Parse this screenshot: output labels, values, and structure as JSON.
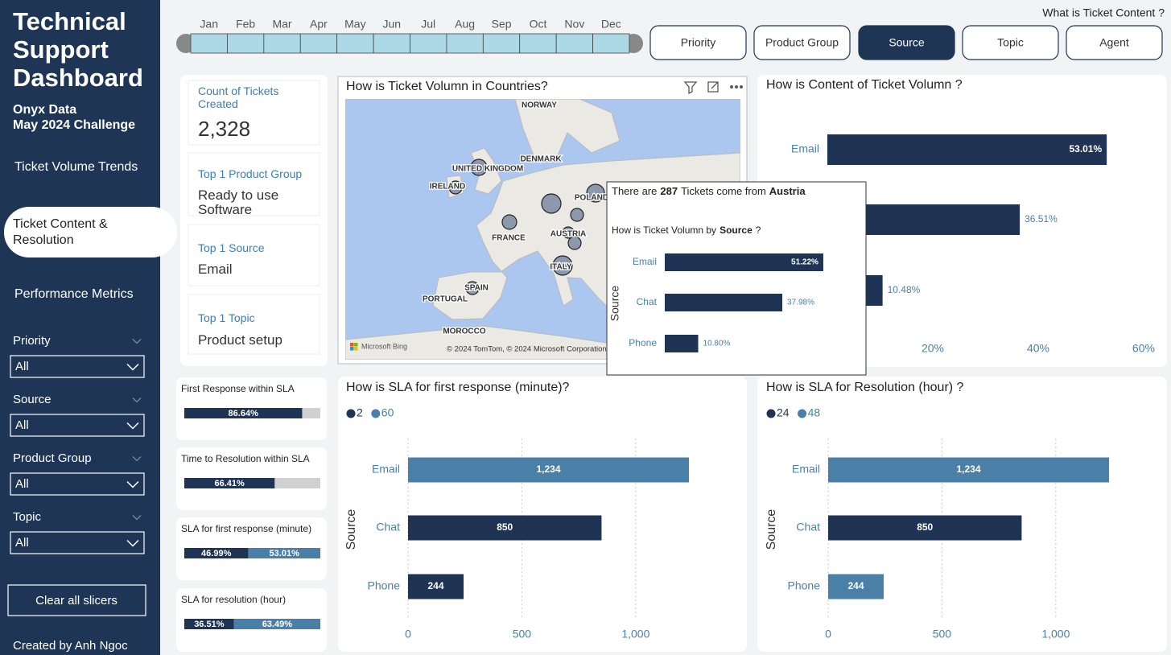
{
  "sidebar": {
    "title": "Technical Support Dashboard",
    "org": "Onyx Data",
    "challenge": "May 2024 Challenge",
    "nav": [
      "Ticket Volume Trends",
      "Ticket Content & Resolution",
      "Performance Metrics"
    ],
    "active_nav": 1,
    "slicers": [
      {
        "label": "Priority",
        "value": "All"
      },
      {
        "label": "Source",
        "value": "All"
      },
      {
        "label": "Product Group",
        "value": "All"
      },
      {
        "label": "Topic",
        "value": "All"
      }
    ],
    "clear_button": "Clear all slicers",
    "credit": "Created by Anh Ngoc"
  },
  "timeline": {
    "months": [
      "Jan",
      "Feb",
      "Mar",
      "Apr",
      "May",
      "Jun",
      "Jul",
      "Aug",
      "Sep",
      "Oct",
      "Nov",
      "Dec"
    ]
  },
  "question": "What is Ticket Content ?",
  "tabs": {
    "items": [
      "Priority",
      "Product Group",
      "Source",
      "Topic",
      "Agent"
    ],
    "active": 2
  },
  "kpis": [
    {
      "label": "Count of Tickets Created",
      "value": "2,328"
    },
    {
      "label": "Top 1 Product Group",
      "value": "Ready to use Software"
    },
    {
      "label": "Top 1 Source",
      "value": "Email"
    },
    {
      "label": "Top 1 Topic",
      "value": "Product setup"
    }
  ],
  "sla_gauges": {
    "xlim": [
      0,
      100
    ],
    "items": [
      {
        "label": "First Response within SLA",
        "segments": [
          {
            "value": 86.64,
            "label": "86.64%",
            "color": "#1f3354"
          }
        ]
      },
      {
        "label": "Time to Resolution within SLA",
        "segments": [
          {
            "value": 66.41,
            "label": "66.41%",
            "color": "#1f3354"
          }
        ]
      },
      {
        "label": "SLA for first response (minute)",
        "segments": [
          {
            "value": 46.99,
            "label": "46.99%",
            "color": "#1f3354"
          },
          {
            "value": 53.01,
            "label": "53.01%",
            "color": "#4a80a8"
          }
        ]
      },
      {
        "label": "SLA for resolution (hour)",
        "segments": [
          {
            "value": 36.51,
            "label": "36.51%",
            "color": "#1f3354"
          },
          {
            "value": 63.49,
            "label": "63.49%",
            "color": "#4a80a8"
          }
        ]
      }
    ]
  },
  "map": {
    "title": "How is Ticket Volumn in Countries?",
    "places": [
      "NORWAY",
      "DENMARK",
      "UNITED KINGDOM",
      "IRELAND",
      "POLAND",
      "FRANCE",
      "AUSTRIA",
      "ITALY",
      "SPAIN",
      "PORTUGAL",
      "MOROCCO"
    ],
    "provider": "Microsoft Bing",
    "attribution": "© 2024 TomTom, © 2024 Microsoft Corporation"
  },
  "content_chart": {
    "type": "bar",
    "title": "How is Content of Ticket Volumn ?",
    "categories": [
      "Email",
      null,
      null
    ],
    "values": [
      53.01,
      36.51,
      10.48
    ],
    "value_labels": [
      "53.01%",
      "36.51%",
      "10.48%"
    ],
    "color": "#1f3354",
    "xlim": [
      0,
      63
    ],
    "xticks": [
      {
        "value": 20,
        "label": "20%"
      },
      {
        "value": 40,
        "label": "40%"
      },
      {
        "value": 60,
        "label": "60%"
      }
    ]
  },
  "tooltip": {
    "prefix": "There are",
    "count": "287",
    "middle": "Tickets come from",
    "country": "Austria",
    "chart": {
      "type": "bar",
      "title_parts": [
        "How is Ticket Volumn by",
        "Source",
        "?"
      ],
      "y_label": "Source",
      "categories": [
        "Email",
        "Chat",
        "Phone"
      ],
      "values": [
        51.22,
        37.98,
        10.8
      ],
      "value_labels": [
        "51.22%",
        "37.98%",
        "10.80%"
      ],
      "color": "#1f3354",
      "xlim": [
        0,
        55
      ]
    }
  },
  "sla_first": {
    "type": "bar",
    "title": "How is SLA for first response (minute)?",
    "y_label": "Source",
    "categories": [
      "Email",
      "Chat",
      "Phone"
    ],
    "series": [
      {
        "name": "2",
        "color": "#1f3354",
        "values": [
          null,
          850,
          244
        ],
        "value_labels": [
          null,
          "850",
          "244"
        ]
      },
      {
        "name": "60",
        "color": "#4a80a8",
        "values": [
          1234,
          null,
          null
        ],
        "value_labels": [
          "1,234",
          null,
          null
        ]
      }
    ],
    "xlim": [
      0,
      1400
    ],
    "xticks": [
      0,
      500,
      {
        "value": 1000,
        "label": "1,000"
      }
    ],
    "grid": true,
    "label_position": "center"
  },
  "sla_resolution": {
    "type": "bar",
    "title": "How is SLA for Resolution (hour) ?",
    "y_label": "Source",
    "categories": [
      "Email",
      "Chat",
      "Phone"
    ],
    "series": [
      {
        "name": "24",
        "color": "#1f3354",
        "values": [
          null,
          850,
          null
        ],
        "value_labels": [
          null,
          "850",
          null
        ]
      },
      {
        "name": "48",
        "color": "#4a80a8",
        "values": [
          1234,
          null,
          244
        ],
        "value_labels": [
          "1,234",
          null,
          "244"
        ]
      }
    ],
    "xlim": [
      0,
      1400
    ],
    "xticks": [
      0,
      500,
      {
        "value": 1000,
        "label": "1,000"
      }
    ],
    "grid": true,
    "label_position": "center"
  }
}
